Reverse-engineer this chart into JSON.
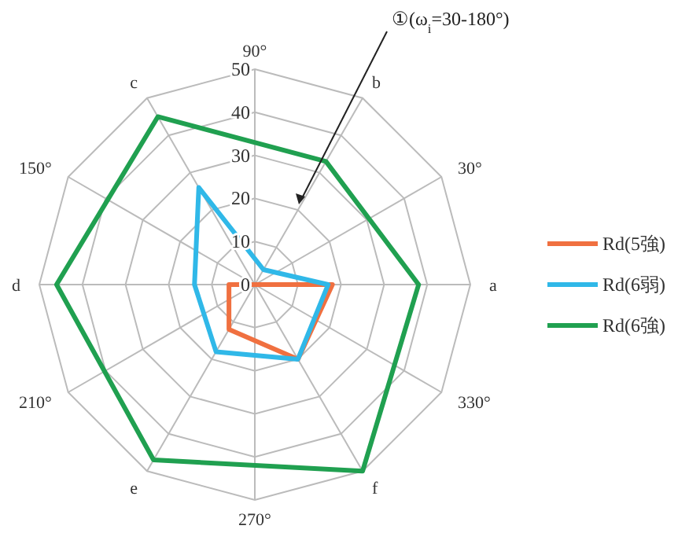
{
  "chart_data": {
    "type": "radar",
    "categories": [
      "90°",
      "b",
      "30°",
      "a",
      "330°",
      "f",
      "270°",
      "e",
      "210°",
      "d",
      "150°",
      "c"
    ],
    "ylim": [
      0,
      50
    ],
    "yticks": [
      0,
      10,
      20,
      30,
      40,
      50
    ],
    "grid": true,
    "legend": "right",
    "line_style": "solid",
    "marker": "none",
    "series": [
      {
        "name": "Rd(5強)",
        "color": "#f07040",
        "values": [
          null,
          0,
          null,
          18,
          null,
          20,
          null,
          12,
          null,
          6,
          null,
          0
        ]
      },
      {
        "name": "Rd(6弱)",
        "color": "#30b8e8",
        "values": [
          null,
          4,
          null,
          17,
          null,
          20,
          null,
          18,
          null,
          14,
          null,
          26
        ]
      },
      {
        "name": "Rd(6強)",
        "color": "#20a050",
        "values": [
          null,
          33,
          null,
          38,
          null,
          50,
          null,
          47,
          null,
          46,
          null,
          45
        ]
      }
    ],
    "annotations": [
      "①(ω$_{i}$=30-180°)"
    ]
  }
}
